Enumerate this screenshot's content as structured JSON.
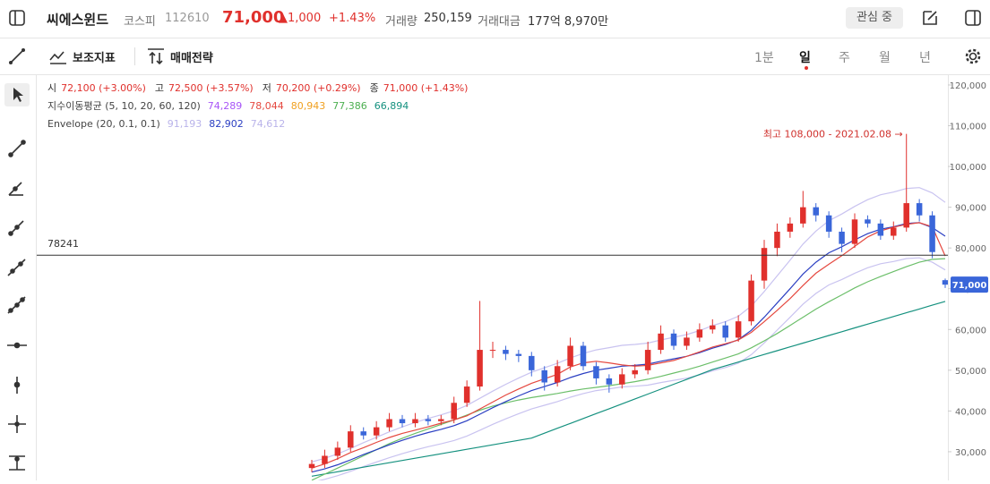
{
  "header": {
    "name": "씨에스윈드",
    "market": "코스피",
    "code": "112610",
    "price": "71,000",
    "change": "▲1,000",
    "change_pct": "+1.43%",
    "volume_label": "거래량",
    "volume": "250,159",
    "amount_label": "거래대금",
    "amount": "177억 8,970만",
    "watch": "관심 중"
  },
  "toolbar": {
    "indicators": "보조지표",
    "strategy": "매매전략",
    "periods": [
      "1분",
      "일",
      "주",
      "월",
      "년"
    ]
  },
  "chart_data": {
    "type": "candlestick",
    "ohlc_legend": [
      {
        "label": "시",
        "value": "72,100 (+3.00%)"
      },
      {
        "label": "고",
        "value": "72,500 (+3.57%)"
      },
      {
        "label": "저",
        "value": "70,200 (+0.29%)"
      },
      {
        "label": "종",
        "value": "71,000 (+1.43%)"
      }
    ],
    "ma_legend": {
      "title": "지수이동평균 (5, 10, 20, 60, 120)",
      "values": [
        {
          "text": "74,289",
          "color": "#a855f7"
        },
        {
          "text": "78,044",
          "color": "#e5483f"
        },
        {
          "text": "80,943",
          "color": "#f0a020"
        },
        {
          "text": "77,386",
          "color": "#4caf50"
        },
        {
          "text": "66,894",
          "color": "#15917f"
        }
      ]
    },
    "envelope_legend": {
      "title": "Envelope (20, 0.1, 0.1)",
      "values": [
        {
          "text": "91,193",
          "color": "#b9b3ea"
        },
        {
          "text": "82,902",
          "color": "#2b3fc2"
        },
        {
          "text": "74,612",
          "color": "#b9b3ea"
        }
      ]
    },
    "up_color": "#e0302c",
    "down_color": "#3a66d9",
    "open": [
      26000,
      27000,
      29000,
      31000,
      35000,
      34000,
      36000,
      38000,
      37000,
      38000,
      37500,
      38000,
      42000,
      46000,
      55000,
      55000,
      54000,
      53500,
      50000,
      47000,
      51000,
      56000,
      51000,
      48000,
      46500,
      49000,
      50000,
      55000,
      59000,
      56000,
      58000,
      60000,
      61000,
      58000,
      62000,
      72000,
      80000,
      84000,
      86000,
      90000,
      88000,
      84000,
      81000,
      87000,
      86000,
      83000,
      85000,
      91000,
      88000,
      72100
    ],
    "high": [
      28000,
      30500,
      32500,
      36500,
      36000,
      37500,
      39500,
      39000,
      39500,
      39000,
      39000,
      43500,
      47500,
      67000,
      57000,
      56000,
      55000,
      54500,
      51000,
      52500,
      58000,
      57000,
      52000,
      49000,
      50500,
      51500,
      57000,
      61000,
      60000,
      59500,
      61500,
      62500,
      62000,
      63500,
      73500,
      82000,
      86000,
      87500,
      94000,
      91000,
      89000,
      85000,
      88500,
      88000,
      87000,
      86500,
      108000,
      92000,
      89000,
      72500
    ],
    "low": [
      25000,
      26000,
      28000,
      30000,
      33000,
      33000,
      35000,
      36000,
      36000,
      36500,
      36500,
      37000,
      41000,
      45000,
      53000,
      52500,
      52000,
      48500,
      45000,
      46000,
      50000,
      50000,
      46500,
      44500,
      45500,
      48000,
      49000,
      54000,
      55000,
      55000,
      57000,
      59000,
      57000,
      57000,
      61000,
      70000,
      78000,
      82500,
      85000,
      86500,
      82500,
      79000,
      80000,
      85000,
      82000,
      82000,
      84000,
      86500,
      77500,
      70200
    ],
    "close": [
      27000,
      29000,
      31000,
      35000,
      34000,
      36000,
      38000,
      37000,
      38000,
      37500,
      38000,
      42000,
      46000,
      55000,
      55000,
      54000,
      53500,
      50000,
      47000,
      51000,
      56000,
      51000,
      48000,
      46500,
      49000,
      50000,
      55000,
      59000,
      56000,
      58000,
      60000,
      61000,
      58000,
      62000,
      72000,
      80000,
      84000,
      86000,
      90000,
      88000,
      84000,
      81000,
      87000,
      86000,
      83000,
      85000,
      91000,
      88000,
      79000,
      71000
    ],
    "lines": [
      {
        "color": "#c9c3f0",
        "values": [
          27500,
          28380,
          29480,
          30800,
          32230,
          33550,
          34870,
          36080,
          37180,
          38170,
          39050,
          40040,
          41360,
          43120,
          44880,
          46530,
          48070,
          49500,
          50600,
          51700,
          53020,
          54120,
          55000,
          55550,
          56100,
          56320,
          56650,
          57420,
          58080,
          58740,
          59730,
          60940,
          61930,
          63250,
          65780,
          69300,
          73150,
          77000,
          80960,
          84150,
          86680,
          88330,
          90200,
          91850,
          93060,
          93720,
          94600,
          94820,
          93500,
          91193
        ]
      },
      {
        "color": "#c9c3f0",
        "values": [
          22500,
          23220,
          24120,
          25200,
          26370,
          27450,
          28530,
          29520,
          30420,
          31230,
          31950,
          32760,
          33840,
          35280,
          36720,
          38070,
          39330,
          40500,
          41400,
          42300,
          43380,
          44280,
          45000,
          45450,
          45900,
          46080,
          46350,
          46980,
          47520,
          48060,
          48870,
          49860,
          50670,
          51750,
          53820,
          56700,
          59850,
          63000,
          66240,
          68850,
          70920,
          72270,
          73800,
          75150,
          76140,
          76680,
          77400,
          77580,
          76500,
          74612
        ]
      },
      {
        "color": "#15917f",
        "values": [
          24000,
          24550,
          25100,
          25650,
          26200,
          26750,
          27300,
          27850,
          28400,
          28950,
          29500,
          30050,
          30600,
          31150,
          31700,
          32250,
          32800,
          33350,
          34550,
          35750,
          36950,
          38150,
          39350,
          40550,
          41750,
          42950,
          44150,
          45350,
          46550,
          47750,
          48950,
          50150,
          51080,
          52010,
          52940,
          53870,
          54800,
          55730,
          56660,
          57590,
          58520,
          59450,
          60380,
          61310,
          62240,
          63170,
          64100,
          65030,
          65960,
          66894
        ]
      },
      {
        "color": "#6cbf6a",
        "values": [
          23000,
          24500,
          26000,
          27500,
          29000,
          30500,
          32000,
          33300,
          34500,
          35600,
          36700,
          37800,
          39000,
          40200,
          41200,
          42000,
          42700,
          43300,
          43800,
          44300,
          44900,
          45400,
          45800,
          46200,
          46700,
          47200,
          47800,
          48500,
          49300,
          50100,
          51000,
          52000,
          53000,
          54000,
          55500,
          57200,
          59000,
          61000,
          63000,
          65000,
          66800,
          68500,
          70200,
          71700,
          73000,
          74200,
          75400,
          76500,
          77200,
          77386
        ]
      },
      {
        "color": "#2b3fc2",
        "values": [
          25000,
          25800,
          26800,
          28000,
          29300,
          30500,
          31700,
          32800,
          33800,
          34700,
          35500,
          36400,
          37600,
          39200,
          40800,
          42300,
          43700,
          45000,
          46000,
          47000,
          48200,
          49200,
          50000,
          50500,
          51000,
          51200,
          51500,
          52200,
          52800,
          53400,
          54300,
          55400,
          56300,
          57500,
          59800,
          63000,
          66500,
          70000,
          73600,
          76500,
          78800,
          80300,
          82000,
          83500,
          84600,
          85200,
          86000,
          86200,
          85000,
          82902
        ]
      },
      {
        "color": "#e5483f",
        "values": [
          26000,
          27000,
          28300,
          29800,
          31000,
          32300,
          33500,
          34500,
          35300,
          36100,
          37000,
          37800,
          38800,
          40500,
          42200,
          43900,
          45400,
          46800,
          47900,
          49000,
          50800,
          51800,
          52200,
          51800,
          51300,
          51000,
          51200,
          51800,
          52400,
          53400,
          54500,
          55700,
          56500,
          57400,
          59300,
          61900,
          64700,
          67600,
          70800,
          73800,
          76000,
          78100,
          80400,
          82700,
          84200,
          85100,
          85800,
          86200,
          85200,
          78044
        ]
      }
    ],
    "reference_line": {
      "value": 78241,
      "color": "#333333"
    },
    "current_price": {
      "value": 71000,
      "label": "71,000",
      "color": "#3a66d9"
    },
    "annotation": {
      "text": "최고 108,000 - 2021.02.08 →",
      "color": "#d0312d"
    },
    "ylim": [
      22960,
      122410
    ],
    "yticks": [
      {
        "value": 30000,
        "label": "30,000"
      },
      {
        "value": 40000,
        "label": "40,000"
      },
      {
        "value": 50000,
        "label": "50,000"
      },
      {
        "value": 60000,
        "label": "60,000"
      },
      {
        "value": 70000,
        "label": "70,000"
      },
      {
        "value": 80000,
        "label": "80,000"
      },
      {
        "value": 90000,
        "label": "90,000"
      },
      {
        "value": 100000,
        "label": "100,000"
      },
      {
        "value": 110000,
        "label": "110,000"
      },
      {
        "value": 120000,
        "label": "120,000"
      }
    ]
  }
}
